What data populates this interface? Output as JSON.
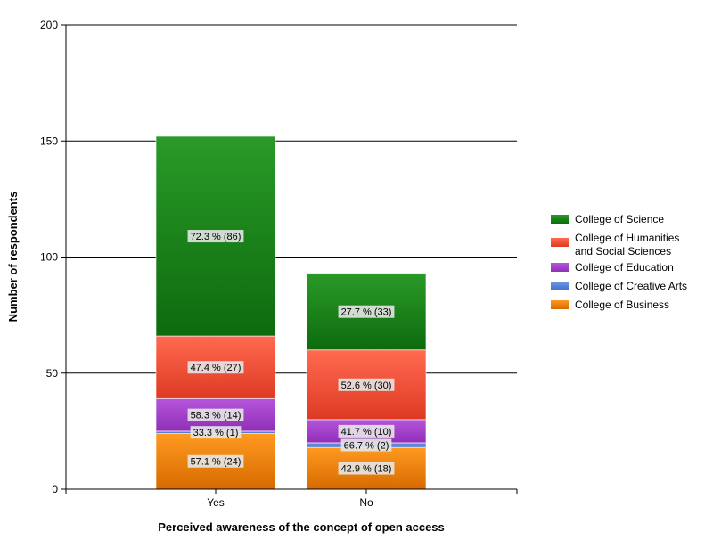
{
  "chart_data": {
    "type": "bar",
    "stacked": true,
    "xlabel": "Perceived awareness of the concept of open access",
    "ylabel": "Number of respondents",
    "ylim": [
      0,
      200
    ],
    "yticks": [
      0,
      50,
      100,
      150,
      200
    ],
    "categories": [
      "Yes",
      "No"
    ],
    "grid": true,
    "legend_position": "right",
    "series": [
      {
        "name": "College of Business",
        "color": "#ee7f00",
        "values": [
          24,
          18
        ],
        "labels": [
          "57.1 % (24)",
          "42.9 % (18)"
        ]
      },
      {
        "name": "College of Creative Arts",
        "color": "#4f7fd8",
        "values": [
          1,
          2
        ],
        "labels": [
          "33.3 % (1)",
          "66.7 % (2)"
        ]
      },
      {
        "name": "College of Education",
        "color": "#a23bc9",
        "values": [
          14,
          10
        ],
        "labels": [
          "58.3 % (14)",
          "41.7 % (10)"
        ]
      },
      {
        "name": "College of Humanities and Social Sciences",
        "color": "#ee4b33",
        "values": [
          27,
          30
        ],
        "labels": [
          "47.4 % (27)",
          "52.6 % (30)"
        ]
      },
      {
        "name": "College of Science",
        "color": "#137f14",
        "values": [
          86,
          33
        ],
        "labels": [
          "72.3 % (86)",
          "27.7 % (33)"
        ]
      }
    ],
    "legend_order": [
      "College of Science",
      "College of Humanities and Social Sciences",
      "College of Education",
      "College of Creative Arts",
      "College of Business"
    ]
  }
}
